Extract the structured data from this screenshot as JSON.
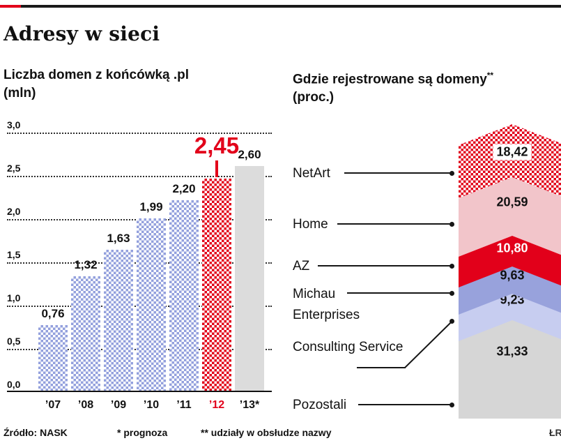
{
  "header": {
    "title": "Adresy w sieci"
  },
  "left_chart": {
    "subtitle_line1": "Liczba domen z końcówką .pl",
    "subtitle_line2": "(mln)"
  },
  "right_chart": {
    "subtitle_line1": "Gdzie rejestrowane są domeny",
    "subtitle_sup": "**",
    "subtitle_line2": "(proc.)"
  },
  "footer": {
    "source": "Źródło: NASK",
    "note1": "* prognoza",
    "note2": "** udziały w obsłudze nazwy",
    "credit": "ŁR"
  },
  "colors": {
    "accent_red": "#e2001a",
    "bar_blue_pattern": "#93a0dd",
    "forecast_gray": "#dcdcdc",
    "pink": "#f2c5ca",
    "periwinkle": "#98a2dc",
    "lavender": "#c7cdf0",
    "rest_gray": "#d6d6d6"
  },
  "chart_data": [
    {
      "type": "bar",
      "title": "Liczba domen z końcówką .pl (mln)",
      "categories": [
        "’07",
        "’08",
        "’09",
        "’10",
        "’11",
        "’12",
        "’13*"
      ],
      "values": [
        0.76,
        1.32,
        1.63,
        1.99,
        2.2,
        2.45,
        2.6
      ],
      "value_labels": [
        "0,76",
        "1,32",
        "1,63",
        "1,99",
        "2,20",
        "2,45",
        "2,60"
      ],
      "xlabel": "",
      "ylabel": "(mln)",
      "ylim": [
        0,
        3.0
      ],
      "ytick_values": [
        3.0,
        2.5,
        2.0,
        1.5,
        1.0,
        0.5,
        0.0
      ],
      "ytick_labels": [
        "3,0",
        "2,5",
        "2,0",
        "1,5",
        "1,0",
        "0,5",
        "0,0"
      ],
      "grid": true,
      "highlight_index": 5,
      "forecast_index": 6
    },
    {
      "type": "bar",
      "variant": "stacked-chevron",
      "title": "Gdzie rejestrowane są domeny** (proc.)",
      "categories": [
        "NetArt",
        "Home",
        "AZ",
        "Michau Enterprises",
        "Consulting Service",
        "Pozostali"
      ],
      "values": [
        18.42,
        20.59,
        10.8,
        9.63,
        9.23,
        31.33
      ],
      "value_labels": [
        "18,42",
        "20,59",
        "10,80",
        "9,63",
        "9,23",
        "31,33"
      ],
      "unit": "proc.",
      "legend_position": "left-labels"
    }
  ]
}
